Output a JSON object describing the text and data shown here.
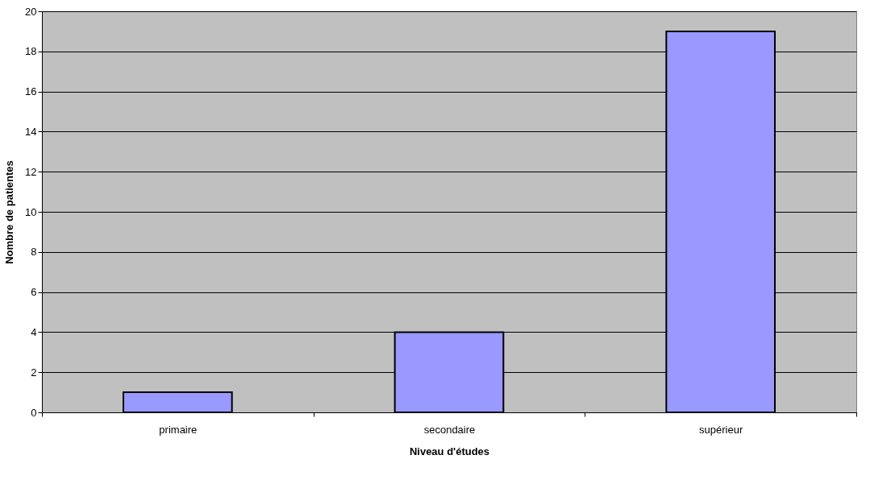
{
  "chart_data": {
    "type": "bar",
    "xlabel": "Niveau d'études",
    "ylabel": "Nombre de patientes",
    "categories": [
      "primaire",
      "secondaire",
      "supérieur"
    ],
    "values": [
      1,
      4,
      19
    ],
    "color": "#9999ff",
    "ylim": [
      0,
      20
    ],
    "yticks": [
      0,
      2,
      4,
      6,
      8,
      10,
      12,
      14,
      16,
      18,
      20
    ],
    "grid": "y"
  }
}
